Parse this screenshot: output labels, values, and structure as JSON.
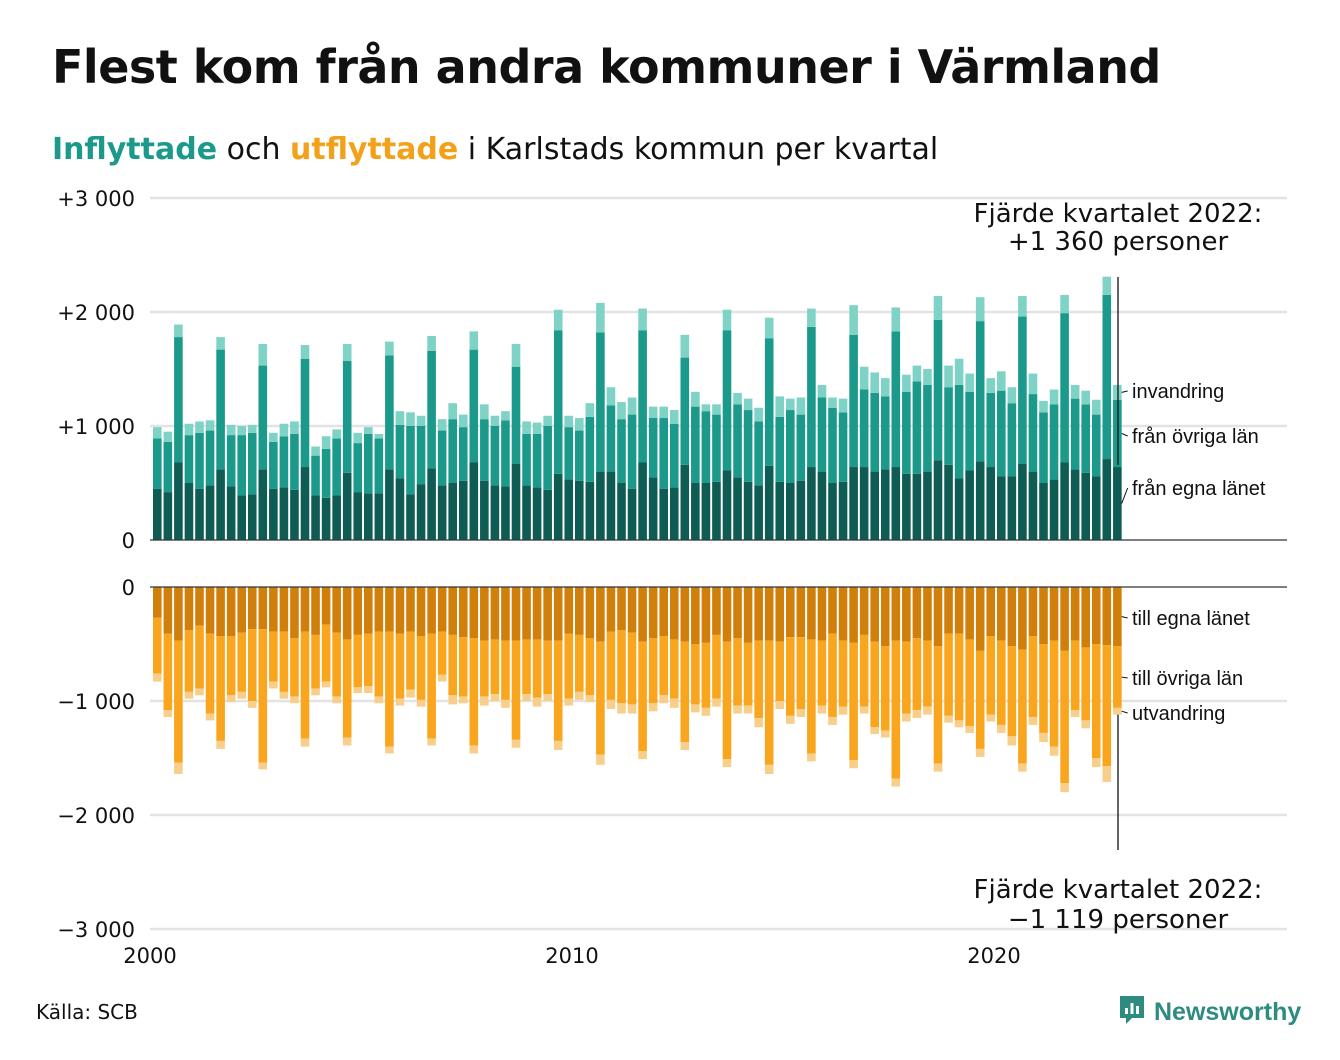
{
  "title": "Flest kom från andra kommuner i Värmland",
  "subtitle": {
    "in": "Inflyttade",
    "mid": " och ",
    "out": "utflyttade",
    "rest": " i Karlstads kommun per kvartal"
  },
  "source": "Källa: SCB",
  "logo": {
    "text": "Newsworthy",
    "icon": "newsworthy-logo-icon"
  },
  "colors": {
    "in_egna": "#0f5c55",
    "in_ovriga": "#1b9a8c",
    "in_invandring": "#7fd3c6",
    "out_egna": "#d07f0b",
    "out_ovriga": "#f9a51e",
    "out_utvandring": "#f7cf8a",
    "grid": "#e3e3e3",
    "baseline": "#333333"
  },
  "annotations": {
    "top": {
      "line1": "Fjärde kvartalet 2022:",
      "line2": "+1 360 personer"
    },
    "bottom": {
      "line1": "Fjärde kvartalet 2022:",
      "line2": "−1 119 personer"
    }
  },
  "chart_data": [
    {
      "type": "bar",
      "stacked": true,
      "name_of_panel": "Inflyttade",
      "x_ticks": [
        "2000",
        "2010",
        "2020"
      ],
      "y_ticks": [
        "+3 000",
        "+2 000",
        "+1 000",
        "0"
      ],
      "ylim": [
        0,
        3000
      ],
      "x_range": [
        "2000 Q1",
        "2022 Q4"
      ],
      "grid": true,
      "legend_placement": "right, labels at end of last bar",
      "series": [
        {
          "name": "från egna länet",
          "key": "in_egna"
        },
        {
          "name": "från övriga län",
          "key": "in_ovriga"
        },
        {
          "name": "invandring",
          "key": "in_invandring"
        }
      ],
      "values": [
        [
          450,
          440,
          100
        ],
        [
          420,
          440,
          90
        ],
        [
          680,
          1100,
          110
        ],
        [
          500,
          420,
          100
        ],
        [
          450,
          490,
          100
        ],
        [
          480,
          480,
          90
        ],
        [
          620,
          1050,
          110
        ],
        [
          470,
          450,
          90
        ],
        [
          390,
          530,
          80
        ],
        [
          400,
          540,
          70
        ],
        [
          620,
          910,
          190
        ],
        [
          450,
          410,
          80
        ],
        [
          460,
          450,
          110
        ],
        [
          440,
          490,
          110
        ],
        [
          640,
          950,
          120
        ],
        [
          390,
          350,
          80
        ],
        [
          370,
          430,
          110
        ],
        [
          390,
          500,
          80
        ],
        [
          590,
          980,
          150
        ],
        [
          420,
          430,
          90
        ],
        [
          410,
          520,
          60
        ],
        [
          410,
          480,
          40
        ],
        [
          620,
          1000,
          120
        ],
        [
          540,
          470,
          120
        ],
        [
          400,
          600,
          120
        ],
        [
          490,
          510,
          90
        ],
        [
          630,
          1030,
          130
        ],
        [
          480,
          480,
          100
        ],
        [
          500,
          560,
          140
        ],
        [
          520,
          470,
          110
        ],
        [
          680,
          990,
          160
        ],
        [
          520,
          540,
          130
        ],
        [
          480,
          520,
          90
        ],
        [
          470,
          580,
          80
        ],
        [
          670,
          850,
          200
        ],
        [
          480,
          450,
          110
        ],
        [
          460,
          470,
          100
        ],
        [
          440,
          560,
          90
        ],
        [
          580,
          1260,
          180
        ],
        [
          530,
          460,
          100
        ],
        [
          520,
          440,
          110
        ],
        [
          510,
          570,
          120
        ],
        [
          600,
          1220,
          260
        ],
        [
          600,
          580,
          160
        ],
        [
          500,
          560,
          150
        ],
        [
          450,
          650,
          150
        ],
        [
          680,
          1160,
          190
        ],
        [
          550,
          520,
          100
        ],
        [
          450,
          620,
          100
        ],
        [
          460,
          560,
          120
        ],
        [
          660,
          940,
          200
        ],
        [
          500,
          670,
          130
        ],
        [
          500,
          630,
          60
        ],
        [
          510,
          590,
          90
        ],
        [
          610,
          1230,
          180
        ],
        [
          550,
          640,
          100
        ],
        [
          510,
          630,
          100
        ],
        [
          480,
          560,
          120
        ],
        [
          650,
          1120,
          180
        ],
        [
          510,
          570,
          180
        ],
        [
          500,
          640,
          100
        ],
        [
          520,
          580,
          150
        ],
        [
          640,
          1230,
          160
        ],
        [
          600,
          650,
          110
        ],
        [
          500,
          660,
          90
        ],
        [
          510,
          610,
          120
        ],
        [
          640,
          1160,
          260
        ],
        [
          640,
          680,
          200
        ],
        [
          600,
          690,
          180
        ],
        [
          620,
          640,
          160
        ],
        [
          640,
          1190,
          210
        ],
        [
          580,
          720,
          150
        ],
        [
          580,
          810,
          140
        ],
        [
          600,
          760,
          140
        ],
        [
          700,
          1230,
          210
        ],
        [
          660,
          680,
          190
        ],
        [
          540,
          820,
          230
        ],
        [
          610,
          690,
          160
        ],
        [
          690,
          1230,
          210
        ],
        [
          640,
          650,
          130
        ],
        [
          560,
          750,
          170
        ],
        [
          560,
          640,
          140
        ],
        [
          670,
          1290,
          180
        ],
        [
          600,
          680,
          180
        ],
        [
          500,
          620,
          100
        ],
        [
          530,
          660,
          130
        ],
        [
          680,
          1310,
          160
        ],
        [
          620,
          620,
          120
        ],
        [
          590,
          600,
          120
        ],
        [
          560,
          540,
          130
        ],
        [
          710,
          1440,
          160
        ],
        [
          640,
          590,
          130
        ]
      ]
    },
    {
      "type": "bar",
      "stacked": true,
      "name_of_panel": "Utflyttade",
      "x_ticks": [
        "2000",
        "2010",
        "2020"
      ],
      "y_ticks": [
        "0",
        "−1 000",
        "−2 000",
        "−3 000"
      ],
      "ylim": [
        -3000,
        0
      ],
      "x_range": [
        "2000 Q1",
        "2022 Q4"
      ],
      "grid": true,
      "legend_placement": "right, labels at end of last bar",
      "series": [
        {
          "name": "till egna länet",
          "key": "out_egna"
        },
        {
          "name": "till övriga län",
          "key": "out_ovriga"
        },
        {
          "name": "utvandring",
          "key": "out_utvandring"
        }
      ],
      "values": [
        [
          -270,
          -490,
          -70
        ],
        [
          -410,
          -670,
          -60
        ],
        [
          -470,
          -1070,
          -100
        ],
        [
          -380,
          -540,
          -60
        ],
        [
          -340,
          -550,
          -60
        ],
        [
          -410,
          -700,
          -60
        ],
        [
          -430,
          -920,
          -70
        ],
        [
          -430,
          -520,
          -60
        ],
        [
          -400,
          -520,
          -60
        ],
        [
          -370,
          -630,
          -60
        ],
        [
          -370,
          -1170,
          -60
        ],
        [
          -390,
          -440,
          -60
        ],
        [
          -390,
          -530,
          -60
        ],
        [
          -450,
          -510,
          -60
        ],
        [
          -390,
          -940,
          -70
        ],
        [
          -420,
          -470,
          -60
        ],
        [
          -330,
          -500,
          -50
        ],
        [
          -400,
          -560,
          -60
        ],
        [
          -460,
          -860,
          -70
        ],
        [
          -420,
          -460,
          -50
        ],
        [
          -410,
          -460,
          -60
        ],
        [
          -390,
          -570,
          -60
        ],
        [
          -390,
          -1010,
          -60
        ],
        [
          -410,
          -570,
          -60
        ],
        [
          -390,
          -510,
          -70
        ],
        [
          -430,
          -560,
          -60
        ],
        [
          -410,
          -920,
          -60
        ],
        [
          -390,
          -380,
          -60
        ],
        [
          -420,
          -530,
          -80
        ],
        [
          -440,
          -520,
          -60
        ],
        [
          -450,
          -940,
          -70
        ],
        [
          -470,
          -490,
          -80
        ],
        [
          -460,
          -480,
          -60
        ],
        [
          -470,
          -520,
          -70
        ],
        [
          -470,
          -870,
          -70
        ],
        [
          -460,
          -480,
          -60
        ],
        [
          -460,
          -510,
          -80
        ],
        [
          -470,
          -470,
          -60
        ],
        [
          -470,
          -880,
          -80
        ],
        [
          -410,
          -570,
          -60
        ],
        [
          -420,
          -500,
          -70
        ],
        [
          -450,
          -500,
          -60
        ],
        [
          -480,
          -990,
          -90
        ],
        [
          -390,
          -600,
          -80
        ],
        [
          -380,
          -640,
          -90
        ],
        [
          -400,
          -630,
          -80
        ],
        [
          -480,
          -960,
          -70
        ],
        [
          -450,
          -570,
          -70
        ],
        [
          -430,
          -520,
          -70
        ],
        [
          -460,
          -520,
          -80
        ],
        [
          -480,
          -880,
          -70
        ],
        [
          -500,
          -530,
          -70
        ],
        [
          -490,
          -570,
          -70
        ],
        [
          -420,
          -560,
          -70
        ],
        [
          -480,
          -1030,
          -70
        ],
        [
          -450,
          -590,
          -70
        ],
        [
          -490,
          -550,
          -70
        ],
        [
          -470,
          -680,
          -80
        ],
        [
          -470,
          -1090,
          -80
        ],
        [
          -480,
          -520,
          -70
        ],
        [
          -440,
          -690,
          -70
        ],
        [
          -440,
          -630,
          -70
        ],
        [
          -460,
          -1000,
          -70
        ],
        [
          -470,
          -570,
          -70
        ],
        [
          -410,
          -730,
          -70
        ],
        [
          -470,
          -580,
          -70
        ],
        [
          -490,
          -1030,
          -70
        ],
        [
          -420,
          -630,
          -60
        ],
        [
          -480,
          -750,
          -60
        ],
        [
          -520,
          -740,
          -60
        ],
        [
          -470,
          -1210,
          -70
        ],
        [
          -480,
          -630,
          -70
        ],
        [
          -450,
          -630,
          -70
        ],
        [
          -470,
          -580,
          -70
        ],
        [
          -520,
          -1030,
          -70
        ],
        [
          -410,
          -720,
          -60
        ],
        [
          -410,
          -760,
          -60
        ],
        [
          -460,
          -760,
          -60
        ],
        [
          -560,
          -860,
          -70
        ],
        [
          -430,
          -690,
          -60
        ],
        [
          -470,
          -740,
          -70
        ],
        [
          -520,
          -790,
          -80
        ],
        [
          -550,
          -1000,
          -70
        ],
        [
          -430,
          -710,
          -70
        ],
        [
          -500,
          -780,
          -80
        ],
        [
          -470,
          -930,
          -80
        ],
        [
          -560,
          -1160,
          -80
        ],
        [
          -470,
          -610,
          -60
        ],
        [
          -530,
          -640,
          -70
        ],
        [
          -500,
          -1000,
          -80
        ],
        [
          -510,
          -1060,
          -140
        ],
        [
          -520,
          -540,
          -59
        ]
      ]
    }
  ]
}
